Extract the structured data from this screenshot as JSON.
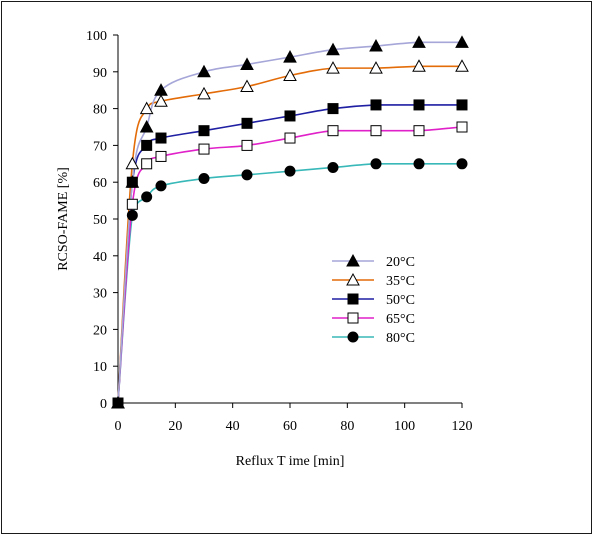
{
  "chart_data": {
    "type": "line",
    "title": "",
    "xlabel": "Reflux T ime [min]",
    "ylabel": "RCSO-FAME [%]",
    "xlim": [
      0,
      120
    ],
    "ylim": [
      0,
      100
    ],
    "xticks": [
      0,
      20,
      40,
      60,
      80,
      100,
      120
    ],
    "yticks": [
      0,
      10,
      20,
      30,
      40,
      50,
      60,
      70,
      80,
      90,
      100
    ],
    "grid": false,
    "legend_position": "center-right",
    "series": [
      {
        "name": "20°C",
        "marker": "filled-triangle",
        "line_color": "#a6a6d9",
        "x": [
          0,
          5,
          10,
          15,
          30,
          45,
          60,
          75,
          90,
          105,
          120
        ],
        "y": [
          0,
          60,
          75,
          85,
          90,
          92,
          94,
          96,
          97,
          98,
          98
        ]
      },
      {
        "name": "35°C",
        "marker": "open-triangle",
        "line_color": "#e36c09",
        "x": [
          0,
          5,
          10,
          15,
          30,
          45,
          60,
          75,
          90,
          105,
          120
        ],
        "y": [
          0,
          65,
          80,
          82,
          84,
          86,
          89,
          91,
          91,
          91.5,
          91.5
        ]
      },
      {
        "name": "50°C",
        "marker": "filled-square",
        "line_color": "#1f1fa3",
        "x": [
          0,
          5,
          10,
          15,
          30,
          45,
          60,
          75,
          90,
          105,
          120
        ],
        "y": [
          0,
          60,
          70,
          72,
          74,
          76,
          78,
          80,
          81,
          81,
          81
        ]
      },
      {
        "name": "65°C",
        "marker": "open-square",
        "line_color": "#e020c8",
        "x": [
          0,
          5,
          10,
          15,
          30,
          45,
          60,
          75,
          90,
          105,
          120
        ],
        "y": [
          0,
          54,
          65,
          67,
          69,
          70,
          72,
          74,
          74,
          74,
          75
        ]
      },
      {
        "name": "80°C",
        "marker": "filled-circle",
        "line_color": "#38b8b8",
        "x": [
          0,
          5,
          10,
          15,
          30,
          45,
          60,
          75,
          90,
          105,
          120
        ],
        "y": [
          0,
          51,
          56,
          59,
          61,
          62,
          63,
          64,
          65,
          65,
          65
        ]
      }
    ]
  }
}
